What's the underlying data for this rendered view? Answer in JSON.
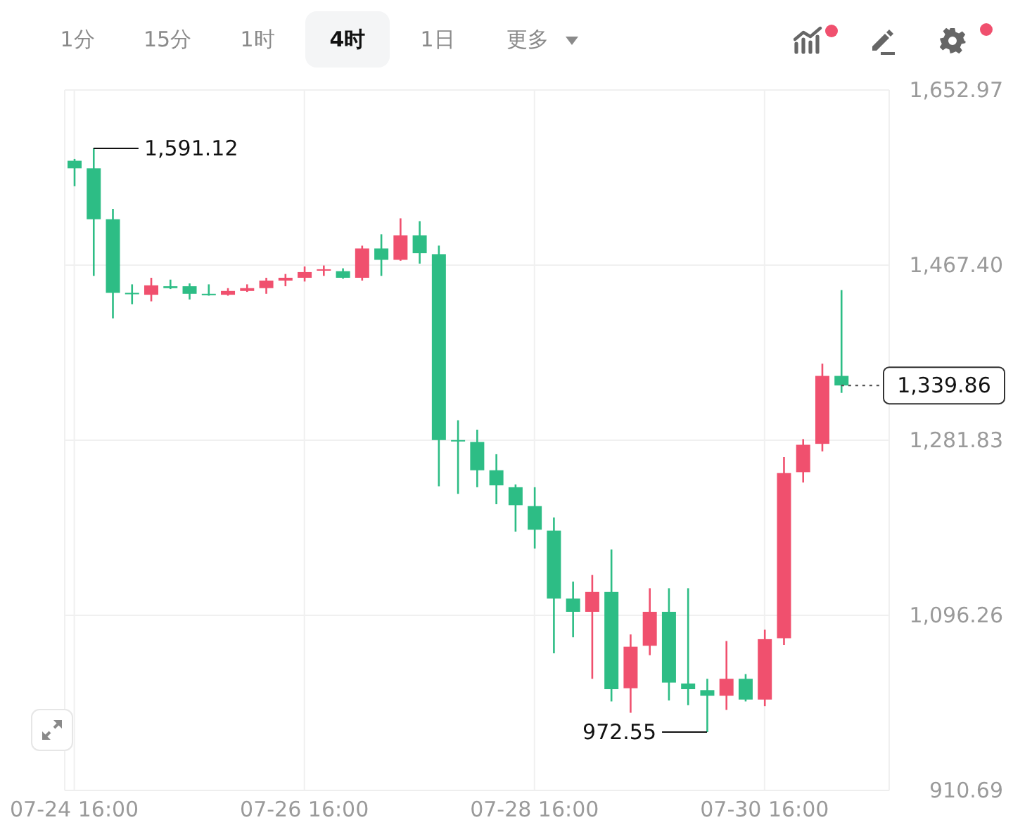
{
  "chart_data": {
    "type": "candlestick",
    "x": [
      "--07-24T16:00",
      "--07-24T20:00",
      "--07-25T00:00",
      "--07-25T04:00",
      "--07-25T08:00",
      "--07-25T12:00",
      "--07-25T16:00",
      "--07-25T20:00",
      "--07-26T00:00",
      "--07-26T04:00",
      "--07-26T08:00",
      "--07-26T12:00",
      "--07-26T16:00",
      "--07-26T20:00",
      "--07-27T00:00",
      "--07-27T04:00",
      "--07-27T08:00",
      "--07-27T12:00",
      "--07-27T16:00",
      "--07-27T20:00",
      "--07-28T00:00",
      "--07-28T04:00",
      "--07-28T08:00",
      "--07-28T12:00",
      "--07-28T16:00",
      "--07-28T20:00",
      "--07-29T00:00",
      "--07-29T04:00",
      "--07-29T08:00",
      "--07-29T12:00",
      "--07-29T16:00",
      "--07-29T20:00",
      "--07-30T00:00",
      "--07-30T04:00",
      "--07-30T08:00",
      "--07-30T12:00",
      "--07-30T16:00",
      "--07-30T20:00",
      "--07-31T00:00",
      "--07-31T04:00",
      "--07-31T08:00"
    ],
    "ohlc": [
      [
        1578,
        1580,
        1551,
        1570
      ],
      [
        1570,
        1591.12,
        1456,
        1516
      ],
      [
        1516,
        1527,
        1411,
        1438
      ],
      [
        1438,
        1447,
        1426,
        1437
      ],
      [
        1436,
        1454,
        1429,
        1446
      ],
      [
        1445,
        1452,
        1442,
        1443
      ],
      [
        1445,
        1448,
        1431,
        1437
      ],
      [
        1437,
        1447,
        1435,
        1436
      ],
      [
        1436,
        1443,
        1435,
        1440
      ],
      [
        1440,
        1447,
        1439,
        1443
      ],
      [
        1443,
        1454,
        1437,
        1451
      ],
      [
        1451,
        1458,
        1445,
        1454
      ],
      [
        1454,
        1466,
        1450,
        1460
      ],
      [
        1462,
        1467,
        1456,
        1463
      ],
      [
        1461,
        1464,
        1453,
        1454
      ],
      [
        1454,
        1488,
        1451,
        1485
      ],
      [
        1485,
        1500,
        1456,
        1473
      ],
      [
        1473,
        1517,
        1472,
        1499
      ],
      [
        1499,
        1514,
        1469,
        1480
      ],
      [
        1479,
        1488,
        1233,
        1282
      ],
      [
        1282,
        1303,
        1225,
        1281
      ],
      [
        1280,
        1293,
        1232,
        1250
      ],
      [
        1250,
        1267,
        1214,
        1234
      ],
      [
        1232,
        1235,
        1185,
        1213
      ],
      [
        1212,
        1232,
        1167,
        1187
      ],
      [
        1186,
        1200,
        1056,
        1114
      ],
      [
        1114,
        1132,
        1073,
        1100
      ],
      [
        1100,
        1139,
        1029,
        1121
      ],
      [
        1121,
        1166,
        1005,
        1018
      ],
      [
        1019,
        1076,
        993,
        1063
      ],
      [
        1064,
        1125,
        1054,
        1100
      ],
      [
        1100,
        1125,
        1006,
        1025
      ],
      [
        1024,
        1125,
        1001,
        1018
      ],
      [
        1017,
        1029,
        972.55,
        1011
      ],
      [
        1011,
        1069,
        996,
        1029
      ],
      [
        1029,
        1034,
        1005,
        1007
      ],
      [
        1007,
        1081,
        1000,
        1071
      ],
      [
        1072,
        1264,
        1065,
        1247
      ],
      [
        1248,
        1283,
        1237,
        1277
      ],
      [
        1278,
        1363,
        1270,
        1350
      ],
      [
        1350,
        1441,
        1332,
        1339.86
      ]
    ],
    "colors": [
      "#2dbd85",
      "#2dbd85",
      "#2dbd85",
      "#2dbd85",
      "#f0506e",
      "#2dbd85",
      "#2dbd85",
      "#2dbd85",
      "#f0506e",
      "#f0506e",
      "#f0506e",
      "#f0506e",
      "#f0506e",
      "#f0506e",
      "#2dbd85",
      "#f0506e",
      "#2dbd85",
      "#f0506e",
      "#2dbd85",
      "#2dbd85",
      "#2dbd85",
      "#2dbd85",
      "#2dbd85",
      "#2dbd85",
      "#2dbd85",
      "#2dbd85",
      "#2dbd85",
      "#f0506e",
      "#2dbd85",
      "#f0506e",
      "#f0506e",
      "#2dbd85",
      "#2dbd85",
      "#2dbd85",
      "#f0506e",
      "#2dbd85",
      "#f0506e",
      "#f0506e",
      "#f0506e",
      "#f0506e",
      "#2dbd85"
    ],
    "xlim": [
      "--07-24T14:00",
      "--07-31T18:00"
    ],
    "xticks": [
      {
        "value": "--07-24T16:00",
        "label": "07-24 16:00"
      },
      {
        "value": "--07-26T16:00",
        "label": "07-26 16:00"
      },
      {
        "value": "--07-28T16:00",
        "label": "07-28 16:00"
      },
      {
        "value": "--07-30T16:00",
        "label": "07-30 16:00"
      }
    ],
    "ylim": [
      910.69,
      1652.97
    ],
    "yticks": [
      910.69,
      {
        "value": 1096.26,
        "label": "1,096.26"
      },
      {
        "value": 1281.83,
        "label": "1,281.83"
      },
      {
        "value": 1467.4,
        "label": "1,467.40"
      },
      {
        "value": 1652.97,
        "label": "1,652.97"
      }
    ],
    "grid": true,
    "ref_lines": [
      {
        "axis": "y",
        "value": 1339.86,
        "label": "1,339.86",
        "line_style": "dotted",
        "color": "#555555"
      }
    ],
    "annotations": [
      "1分",
      "15分",
      "1时",
      "4时",
      "1日",
      "更多",
      {
        "text": "1,591.12",
        "x": "--07-24T20:00",
        "y": 1591.12
      },
      {
        "text": "972.55",
        "x": "--07-30T04:00",
        "y": 972.55
      }
    ]
  }
}
